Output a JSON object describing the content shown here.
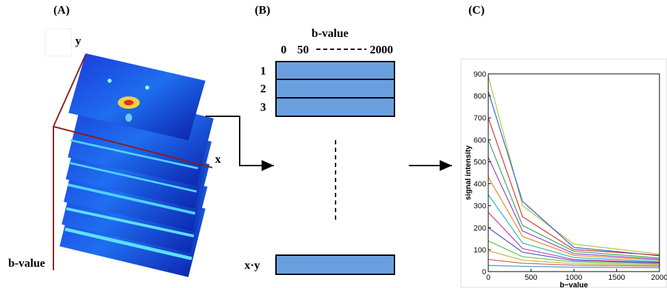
{
  "panel_a": {
    "label": "(A)",
    "axis_y": "y",
    "axis_x": "x",
    "axis_depth": "b-value"
  },
  "panel_b": {
    "label": "(B)",
    "header": "b-value",
    "columns": [
      "0",
      "50",
      "2000"
    ],
    "rows": [
      "1",
      "2",
      "3",
      "x·y"
    ]
  },
  "chart_data": {
    "type": "line",
    "label": "(C)",
    "x_label": "b−value",
    "y_label": "signal intensity",
    "xlim": [
      0,
      2000
    ],
    "ylim": [
      0,
      900
    ],
    "xticks": [
      0,
      500,
      1000,
      1500,
      2000
    ],
    "yticks": [
      0,
      100,
      200,
      300,
      400,
      500,
      600,
      700,
      800,
      900
    ],
    "x": [
      0,
      400,
      1000,
      2000
    ],
    "series": [
      {
        "color": "#a8c83a",
        "values": [
          890,
          300,
          125,
          80
        ]
      },
      {
        "color": "#2a5bd7",
        "values": [
          820,
          320,
          110,
          72
        ]
      },
      {
        "color": "#d62f2f",
        "values": [
          700,
          250,
          100,
          75
        ]
      },
      {
        "color": "#2fa84f",
        "values": [
          600,
          210,
          92,
          62
        ]
      },
      {
        "color": "#8e3fc4",
        "values": [
          520,
          185,
          82,
          56
        ]
      },
      {
        "color": "#e08a1f",
        "values": [
          430,
          160,
          74,
          52
        ]
      },
      {
        "color": "#1fb5c4",
        "values": [
          350,
          130,
          64,
          46
        ]
      },
      {
        "color": "#c43f9e",
        "values": [
          270,
          105,
          55,
          42
        ]
      },
      {
        "color": "#3f4fc4",
        "values": [
          200,
          88,
          50,
          39
        ]
      },
      {
        "color": "#5cc43f",
        "values": [
          140,
          68,
          44,
          34
        ]
      },
      {
        "color": "#c4b43f",
        "values": [
          95,
          52,
          36,
          30
        ]
      },
      {
        "color": "#c45a3f",
        "values": [
          55,
          38,
          29,
          25
        ]
      },
      {
        "color": "#3f8ec4",
        "values": [
          28,
          24,
          20,
          18
        ]
      }
    ]
  }
}
